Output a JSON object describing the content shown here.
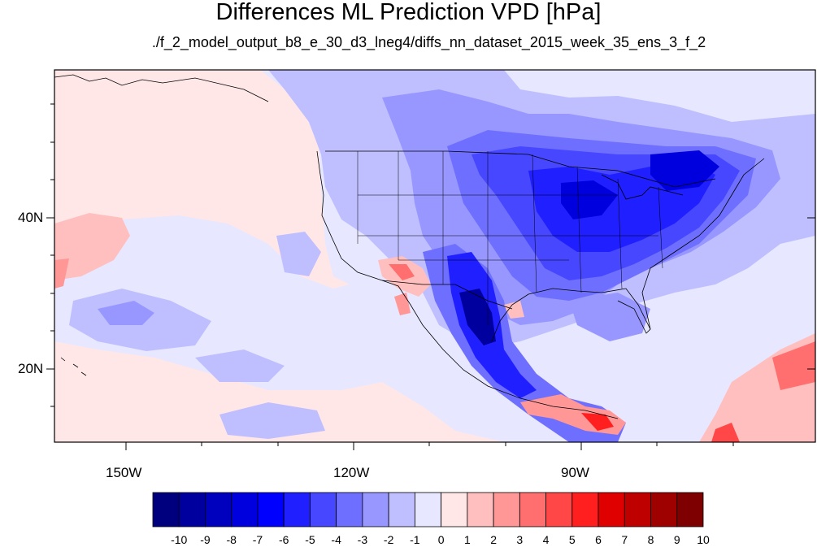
{
  "title": "Differences ML Prediction VPD [hPa]",
  "subtitle": "./f_2_model_output_b8_e_30_d3_lneg4/diffs_nn_dataset_2015_week_35_ens_3_f_2",
  "axes": {
    "lat_labels": [
      "40N",
      "20N"
    ],
    "lon_labels": [
      "150W",
      "120W",
      "90W"
    ]
  },
  "colorbar": {
    "labels": [
      "-10",
      "-9",
      "-8",
      "-7",
      "-6",
      "-5",
      "-4",
      "-3",
      "-2",
      "-1",
      "0",
      "1",
      "2",
      "3",
      "4",
      "5",
      "6",
      "7",
      "8",
      "9",
      "10"
    ],
    "colors": [
      "#00007f",
      "#00009f",
      "#0000bf",
      "#0000df",
      "#0000ff",
      "#1f1fff",
      "#4747ff",
      "#6f6fff",
      "#9797ff",
      "#bfbfff",
      "#e7e7ff",
      "#ffe7e7",
      "#ffbfbf",
      "#ff9797",
      "#ff6f6f",
      "#ff4747",
      "#ff1f1f",
      "#df0000",
      "#bf0000",
      "#9f0000",
      "#7f0000"
    ]
  }
}
